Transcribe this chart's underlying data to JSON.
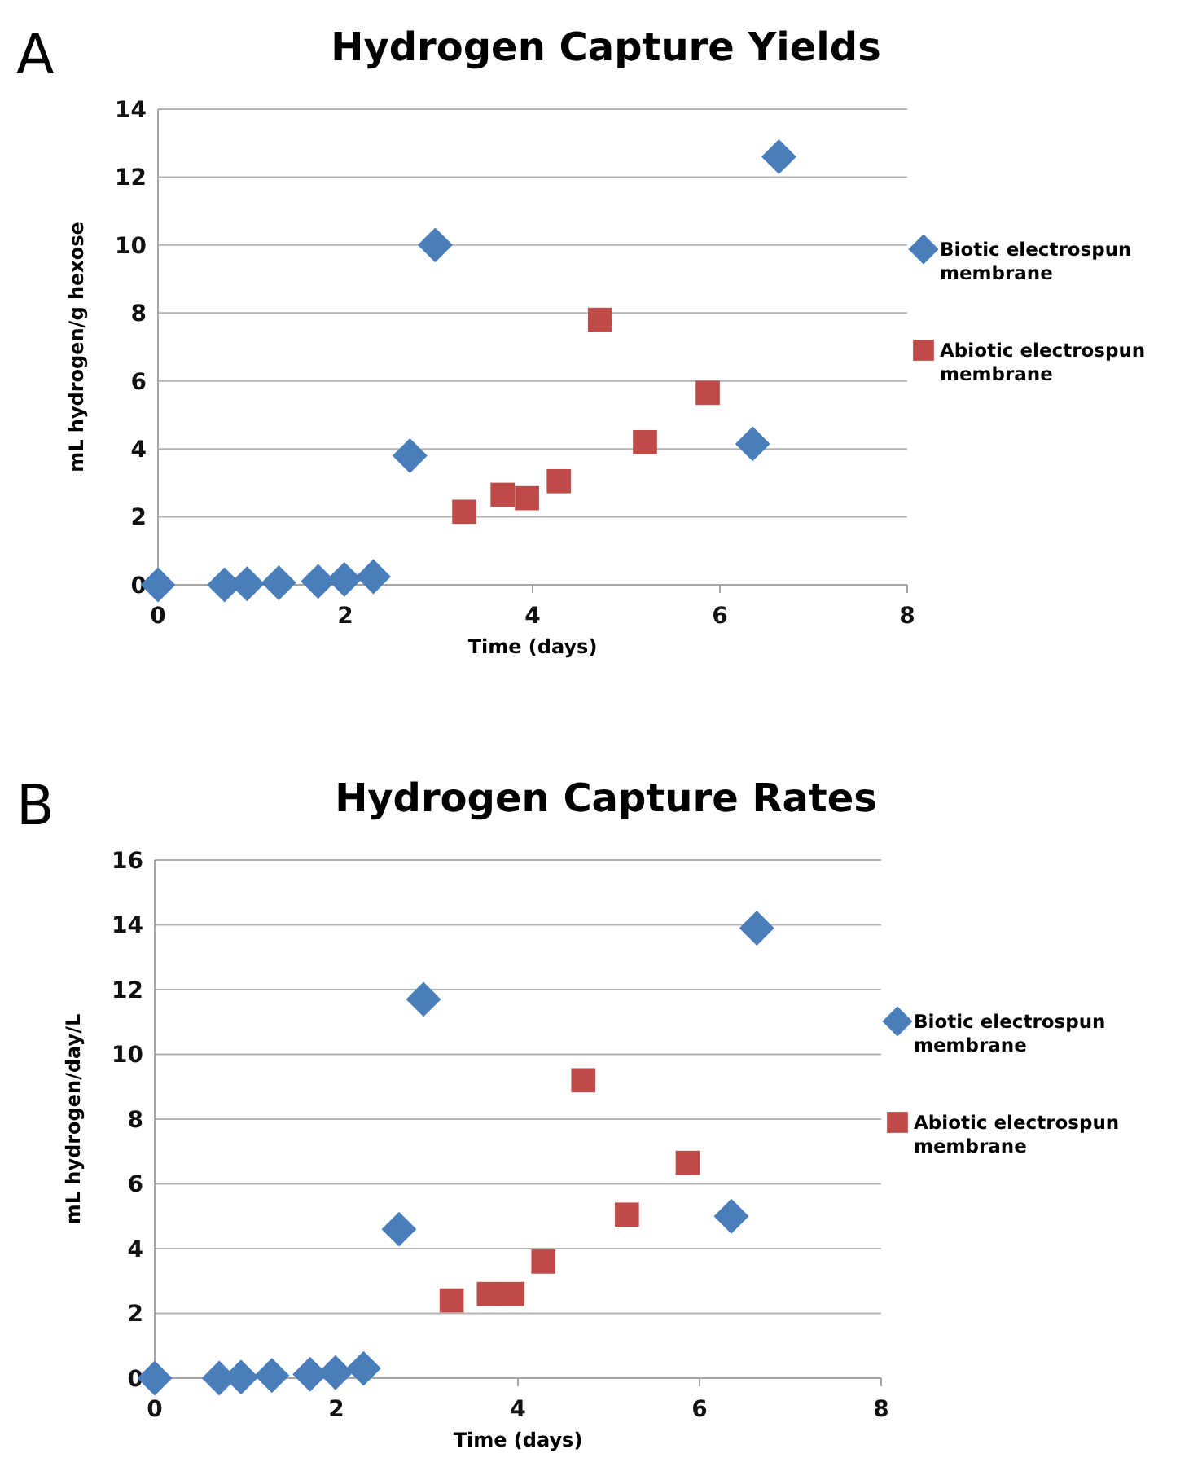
{
  "chart_data": [
    {
      "type": "scatter",
      "title": "Hydrogen Capture Yields",
      "annotations": [
        "A"
      ],
      "xlabel": "Time (days)",
      "ylabel": "mL hydrogen/g hexose",
      "xlim": [
        0,
        8
      ],
      "xticks": [
        0,
        2,
        4,
        6,
        8
      ],
      "ylim": [
        0,
        14
      ],
      "yticks": [
        0,
        2,
        4,
        6,
        8,
        10,
        12,
        14
      ],
      "grid": "y",
      "legend": "right",
      "series": [
        {
          "name": "Biotic electrospun membrane",
          "color": "#4a7ebb",
          "marker": "diamond",
          "x": [
            0,
            0.71,
            0.95,
            1.29,
            1.71,
            1.99,
            2.3,
            2.69,
            2.96,
            6.35,
            6.63
          ],
          "values": [
            0,
            0,
            0.03,
            0.06,
            0.1,
            0.16,
            0.24,
            3.8,
            10,
            4.15,
            12.6
          ]
        },
        {
          "name": "Abiotic electrospun membrane",
          "color": "#be4b48",
          "marker": "square",
          "x": [
            3.27,
            3.68,
            3.94,
            4.28,
            4.72,
            5.2,
            5.87
          ],
          "values": [
            2.15,
            2.65,
            2.55,
            3.05,
            7.8,
            4.2,
            5.65
          ]
        }
      ]
    },
    {
      "type": "scatter",
      "title": "Hydrogen Capture Rates",
      "annotations": [
        "B"
      ],
      "xlabel": "Time (days)",
      "ylabel": "mL hydrogen/day/L",
      "xlim": [
        0,
        8
      ],
      "xticks": [
        0,
        2,
        4,
        6,
        8
      ],
      "ylim": [
        0,
        16
      ],
      "yticks": [
        0,
        2,
        4,
        6,
        8,
        10,
        12,
        14,
        16
      ],
      "grid": "y",
      "legend": "right",
      "series": [
        {
          "name": "Biotic electrospun membrane",
          "color": "#4a7ebb",
          "marker": "diamond",
          "x": [
            0,
            0.71,
            0.95,
            1.29,
            1.71,
            1.99,
            2.3,
            2.69,
            2.96,
            6.35,
            6.63
          ],
          "values": [
            0,
            0,
            0.03,
            0.08,
            0.12,
            0.17,
            0.3,
            4.6,
            11.7,
            5,
            13.9
          ]
        },
        {
          "name": "Abiotic electrospun membrane",
          "color": "#be4b48",
          "marker": "square",
          "x": [
            3.27,
            3.68,
            3.94,
            4.28,
            4.72,
            5.2,
            5.87
          ],
          "values": [
            2.4,
            2.6,
            2.6,
            3.6,
            9.2,
            5.05,
            6.65
          ]
        }
      ]
    }
  ]
}
